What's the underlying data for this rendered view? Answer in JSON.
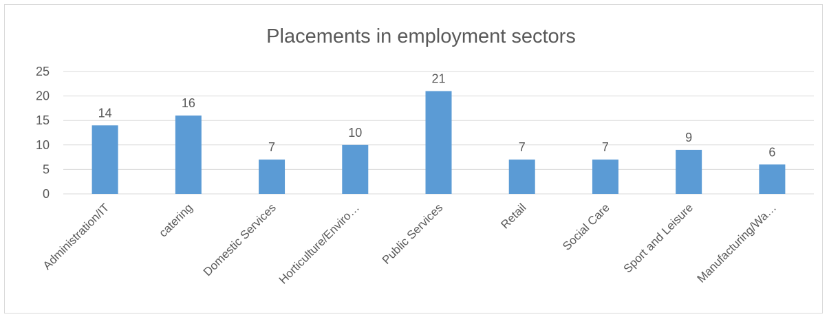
{
  "chart_data": {
    "type": "bar",
    "title": "Placements in employment sectors",
    "categories": [
      "Administration/IT",
      "catering",
      "Domestic Services",
      "Horticulture/Enviro…",
      "Public Services",
      "Retail",
      "Social Care",
      "Sport and Leisure",
      "Manufacturing/Wa…"
    ],
    "values": [
      14,
      16,
      7,
      10,
      21,
      7,
      7,
      9,
      6
    ],
    "ylim": [
      0,
      25
    ],
    "yticks": [
      0,
      5,
      10,
      15,
      20,
      25
    ],
    "xlabel": "",
    "ylabel": "",
    "grid": true,
    "data_labels": true,
    "legend": "none",
    "colors": {
      "bar": "#5b9bd5",
      "grid": "#d9d9d9",
      "text": "#595959",
      "title": "#595959",
      "border": "#d9d9d9"
    }
  }
}
